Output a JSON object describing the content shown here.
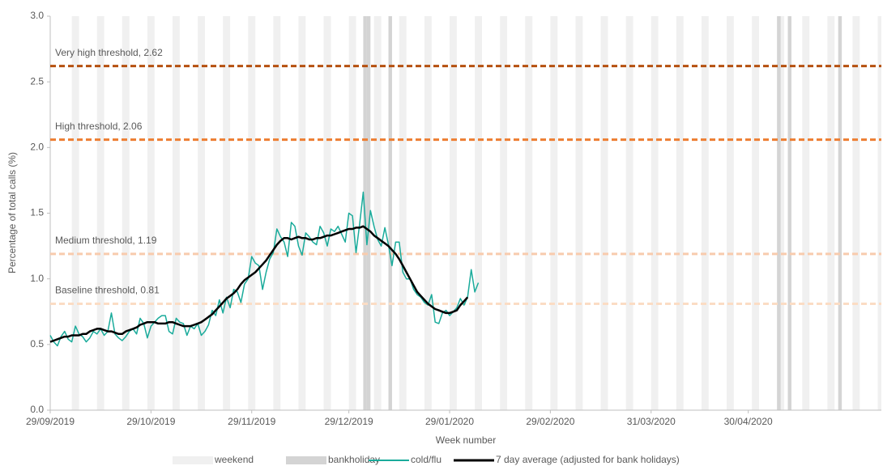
{
  "chart_data": {
    "type": "line",
    "x_label": "Week number",
    "y_label": "Percentage of total calls (%)",
    "xlim": [
      0,
      231
    ],
    "xticks": [
      {
        "value": 0,
        "label": "29/09/2019"
      },
      {
        "value": 28,
        "label": "29/10/2019"
      },
      {
        "value": 56,
        "label": "29/11/2019"
      },
      {
        "value": 83,
        "label": "29/12/2019"
      },
      {
        "value": 111,
        "label": "29/01/2020"
      },
      {
        "value": 139,
        "label": "29/02/2020"
      },
      {
        "value": 167,
        "label": "31/03/2020"
      },
      {
        "value": 194,
        "label": "30/04/2020"
      }
    ],
    "ylim": [
      0,
      3
    ],
    "yticks": [
      {
        "value": 0,
        "label": "0.0"
      },
      0.5,
      {
        "value": 1,
        "label": "1.0"
      },
      1.5,
      {
        "value": 2,
        "label": "2.0"
      },
      2.5,
      {
        "value": 3,
        "label": "3.0"
      }
    ],
    "bands": [
      {
        "name": "weekend",
        "color": "#f0f0f0",
        "values": [
          6,
          13,
          20,
          27,
          34,
          41,
          48,
          55,
          62,
          69,
          76,
          83,
          90,
          97,
          104,
          111,
          118,
          125,
          132,
          139,
          146,
          153,
          160,
          167,
          174,
          181,
          188,
          195,
          202,
          209,
          216,
          223,
          230
        ]
      },
      {
        "name": "bankholiday",
        "color": "#d4d4d4",
        "values": [
          87,
          88,
          94,
          202,
          205,
          219
        ]
      }
    ],
    "thresholds": [
      {
        "label": "Very high threshold, 2.62",
        "value": 2.62,
        "color": "#b5500f"
      },
      {
        "label": "High threshold, 2.06",
        "value": 2.06,
        "color": "#ed7d31"
      },
      {
        "label": "Medium threshold, 1.19",
        "value": 1.19,
        "color": "#f8cbad"
      },
      {
        "label": "Baseline threshold, 0.81",
        "value": 0.81,
        "color": "#fbdcc4"
      }
    ],
    "x": [
      0,
      1,
      2,
      3,
      4,
      5,
      6,
      7,
      8,
      9,
      10,
      11,
      12,
      13,
      14,
      15,
      16,
      17,
      18,
      19,
      20,
      21,
      22,
      23,
      24,
      25,
      26,
      27,
      28,
      29,
      30,
      31,
      32,
      33,
      34,
      35,
      36,
      37,
      38,
      39,
      40,
      41,
      42,
      43,
      44,
      45,
      46,
      47,
      48,
      49,
      50,
      51,
      52,
      53,
      54,
      55,
      56,
      57,
      58,
      59,
      60,
      61,
      62,
      63,
      64,
      65,
      66,
      67,
      68,
      69,
      70,
      71,
      72,
      73,
      74,
      75,
      76,
      77,
      78,
      79,
      80,
      81,
      82,
      83,
      84,
      85,
      86,
      87,
      88,
      89,
      90,
      91,
      92,
      93,
      94,
      95,
      96,
      97,
      98,
      99,
      100,
      101,
      102,
      103,
      104,
      105,
      106,
      107,
      108,
      109,
      110,
      111,
      112,
      113,
      114,
      115,
      116,
      117,
      118,
      119
    ],
    "series": [
      {
        "name": "cold/flu",
        "color": "#1aab9b",
        "values": [
          0.57,
          0.52,
          0.49,
          0.56,
          0.6,
          0.54,
          0.52,
          0.64,
          0.58,
          0.56,
          0.52,
          0.55,
          0.6,
          0.58,
          0.62,
          0.57,
          0.6,
          0.74,
          0.58,
          0.55,
          0.53,
          0.56,
          0.6,
          0.62,
          0.58,
          0.7,
          0.66,
          0.55,
          0.64,
          0.67,
          0.7,
          0.72,
          0.72,
          0.6,
          0.58,
          0.7,
          0.67,
          0.66,
          0.57,
          0.64,
          0.62,
          0.66,
          0.57,
          0.6,
          0.65,
          0.76,
          0.72,
          0.84,
          0.74,
          0.86,
          0.78,
          0.92,
          0.9,
          0.82,
          0.96,
          1.0,
          1.17,
          1.12,
          1.1,
          0.92,
          1.05,
          1.15,
          1.2,
          1.38,
          1.32,
          1.28,
          1.17,
          1.43,
          1.4,
          1.25,
          1.18,
          1.35,
          1.32,
          1.28,
          1.26,
          1.4,
          1.35,
          1.25,
          1.38,
          1.36,
          1.4,
          1.34,
          1.28,
          1.5,
          1.48,
          1.2,
          1.42,
          1.66,
          1.26,
          1.52,
          1.4,
          1.3,
          1.25,
          1.39,
          1.26,
          1.1,
          1.28,
          1.28,
          1.05,
          1.0,
          1.0,
          0.92,
          0.88,
          0.86,
          0.82,
          0.8,
          0.88,
          0.67,
          0.66,
          0.74,
          0.76,
          0.72,
          0.75,
          0.78,
          0.85,
          0.8,
          0.86,
          1.07,
          0.9,
          0.97
        ]
      },
      {
        "name": "7 day average (adjusted for bank holidays)",
        "color": "#000000",
        "values": [
          0.52,
          0.53,
          0.54,
          0.55,
          0.56,
          0.56,
          0.57,
          0.57,
          0.57,
          0.58,
          0.58,
          0.6,
          0.61,
          0.62,
          0.62,
          0.61,
          0.6,
          0.6,
          0.59,
          0.58,
          0.58,
          0.6,
          0.61,
          0.62,
          0.63,
          0.65,
          0.66,
          0.67,
          0.67,
          0.67,
          0.66,
          0.66,
          0.66,
          0.67,
          0.67,
          0.66,
          0.65,
          0.64,
          0.64,
          0.64,
          0.65,
          0.66,
          0.67,
          0.69,
          0.71,
          0.73,
          0.76,
          0.79,
          0.82,
          0.85,
          0.87,
          0.89,
          0.92,
          0.96,
          0.99,
          1.01,
          1.03,
          1.05,
          1.08,
          1.11,
          1.14,
          1.18,
          1.22,
          1.26,
          1.29,
          1.31,
          1.31,
          1.3,
          1.31,
          1.32,
          1.31,
          1.31,
          1.3,
          1.3,
          1.31,
          1.31,
          1.32,
          1.33,
          1.33,
          1.34,
          1.35,
          1.36,
          1.37,
          1.38,
          1.38,
          1.39,
          1.39,
          1.4,
          1.38,
          1.36,
          1.33,
          1.31,
          1.29,
          1.27,
          1.25,
          1.22,
          1.19,
          1.15,
          1.1,
          1.05,
          1.0,
          0.95,
          0.9,
          0.87,
          0.84,
          0.81,
          0.79,
          0.77,
          0.76,
          0.75,
          0.74,
          0.74,
          0.75,
          0.76,
          0.8,
          0.83,
          0.86,
          null,
          null,
          null
        ]
      }
    ]
  }
}
